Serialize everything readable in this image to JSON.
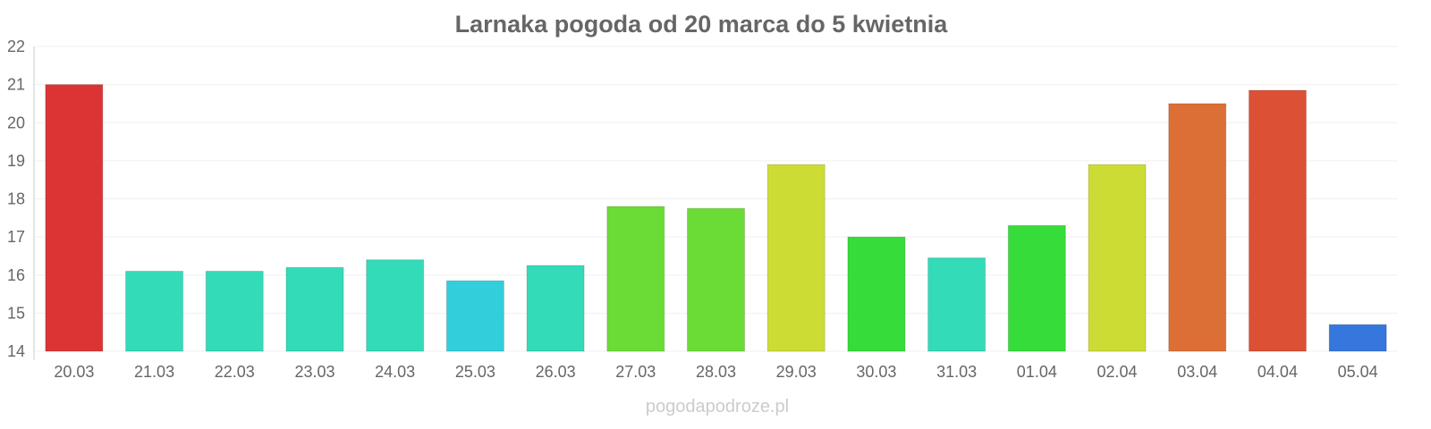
{
  "chart_data": {
    "type": "bar",
    "title": "Larnaka pogoda od 20 marca do 5 kwietnia",
    "xlabel": "",
    "ylabel": "",
    "ylim": [
      14,
      22
    ],
    "yticks": [
      14,
      15,
      16,
      17,
      18,
      19,
      20,
      21,
      22
    ],
    "grid": true,
    "categories": [
      "20.03",
      "21.03",
      "22.03",
      "23.03",
      "24.03",
      "25.03",
      "26.03",
      "27.03",
      "28.03",
      "29.03",
      "30.03",
      "31.03",
      "01.04",
      "02.04",
      "03.04",
      "04.04",
      "05.04"
    ],
    "values": [
      21.0,
      16.1,
      16.1,
      16.2,
      16.4,
      15.85,
      16.25,
      17.8,
      17.75,
      18.9,
      17.0,
      16.45,
      17.3,
      18.9,
      20.5,
      20.85,
      14.7
    ],
    "colors": [
      "#dc3434",
      "#33dbb9",
      "#33dbb9",
      "#33dbb9",
      "#33dbb9",
      "#33cedb",
      "#33dbb9",
      "#6bdc35",
      "#6bdc35",
      "#cddc35",
      "#35dc3a",
      "#33dbb9",
      "#35dc3a",
      "#cddc35",
      "#dc6f35",
      "#dc5035",
      "#3577dc"
    ]
  },
  "credit": "pogodapodroze.pl"
}
